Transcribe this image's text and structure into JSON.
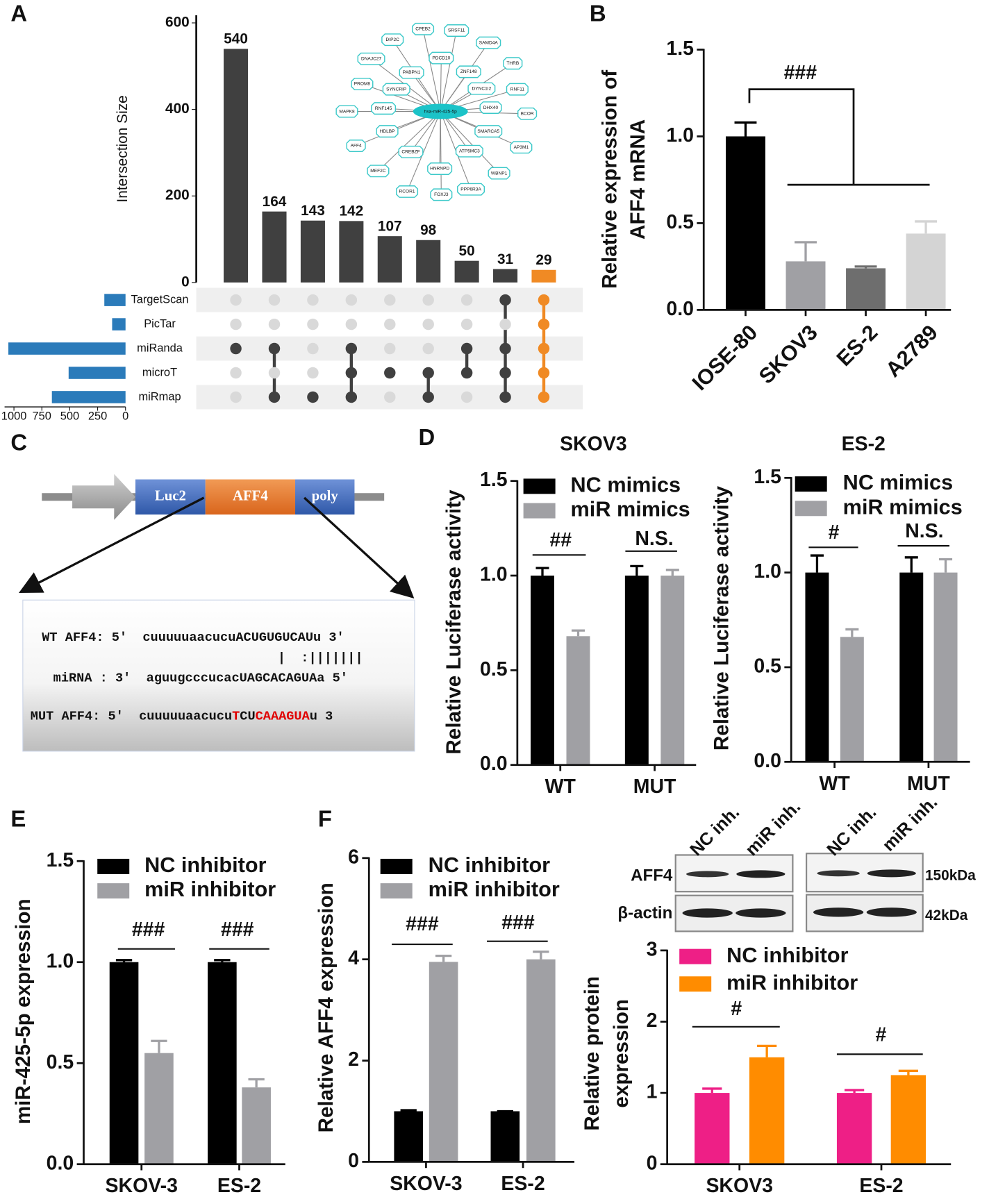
{
  "panel_labels": [
    "A",
    "B",
    "C",
    "D",
    "E",
    "F"
  ],
  "network": {
    "center": "hsa-miR-425-5p",
    "nodes": [
      "CPEB2",
      "SRSF11",
      "DIP2C",
      "SAMD4A",
      "DNAJC27",
      "PDCD10",
      "THRB",
      "PABPN1",
      "ZNF148",
      "PROM8",
      "SYNCRIP",
      "DYNC1I2",
      "RNF11",
      "MAPK8",
      "RNF145",
      "DHX40",
      "BCOR",
      "HDLBP",
      "SMARCA5",
      "AFF4",
      "CREBZF",
      "ATP5MC3",
      "AP3M1",
      "MEF2C",
      "HNRNPD",
      "WBNP1",
      "RCOR1",
      "FOXJ3",
      "PPP6R3A"
    ]
  },
  "construct": {
    "elements": [
      "Luc2",
      "AFF4",
      "poly"
    ],
    "wt": "WT AFF4: 5'  cuuuuuaacucuACUGUGUCAUu 3'",
    "pairing": "|  :|||||||",
    "mirna": "miRNA : 3'  aguugcccucacUAGCACAGUAa 5′",
    "mut": [
      "MUT AFF4: 5'  cuuuuuaacucu",
      "T",
      "CU",
      "CAAAGUA",
      "u 3"
    ]
  },
  "blot": {
    "lanes": [
      "NC inh.",
      "miR inh.",
      "NC inh.",
      "miR inh."
    ],
    "rows": [
      "AFF4",
      "β-actin"
    ],
    "sizes": [
      "150kDa",
      "42kDa"
    ]
  },
  "chart_data": [
    {
      "type": "upset",
      "ylabel": "Intersection Size",
      "values": [
        540,
        164,
        143,
        142,
        107,
        98,
        50,
        31,
        29
      ],
      "colors": [
        "#404040",
        "#404040",
        "#404040",
        "#404040",
        "#404040",
        "#404040",
        "#404040",
        "#404040",
        "#f08a24"
      ],
      "ylim": [
        0,
        600
      ],
      "yticks": [
        0,
        200,
        400,
        600
      ],
      "sets": [
        "TargetScan",
        "PicTar",
        "miRanda",
        "microT",
        "miRmap"
      ],
      "set_sizes": [
        190,
        120,
        1050,
        510,
        660
      ],
      "set_color": "#2b7bba",
      "set_xlim": [
        0,
        1050
      ],
      "set_xticks": [
        0,
        250,
        500,
        750,
        1000
      ],
      "membership": [
        [
          0,
          0,
          1,
          0,
          0
        ],
        [
          0,
          0,
          1,
          0,
          1
        ],
        [
          0,
          0,
          0,
          0,
          1
        ],
        [
          0,
          0,
          1,
          1,
          1
        ],
        [
          0,
          0,
          0,
          1,
          0
        ],
        [
          0,
          0,
          0,
          1,
          1
        ],
        [
          0,
          0,
          1,
          1,
          0
        ],
        [
          1,
          0,
          1,
          1,
          1
        ],
        [
          1,
          1,
          1,
          1,
          1
        ]
      ]
    },
    {
      "type": "bar",
      "ylabel": [
        "Relative expression of",
        "AFF4 mRNA"
      ],
      "categories": [
        "IOSE-80",
        "SKOV3",
        "ES-2",
        "A2789"
      ],
      "values": [
        1.0,
        0.28,
        0.24,
        0.44
      ],
      "errors": [
        0.08,
        0.11,
        0.01,
        0.07
      ],
      "colors": [
        "#000000",
        "#a0a0a4",
        "#6e6e6e",
        "#d4d4d4"
      ],
      "ylim": [
        0,
        1.5
      ],
      "yticks": [
        {
          "value": 0,
          "label": "0.0"
        },
        {
          "value": 0.5,
          "label": "0.5"
        },
        {
          "value": 1,
          "label": "1.0"
        },
        {
          "value": 1.5,
          "label": "1.5"
        }
      ],
      "annotations": [
        "###"
      ]
    },
    {
      "type": "bar",
      "title": "SKOV3",
      "ylabel": "Relative Luciferase activity",
      "categories": [
        "WT",
        "MUT"
      ],
      "series": [
        {
          "name": "NC mimics",
          "color": "#000000",
          "values": [
            1.0,
            1.0
          ],
          "errors": [
            0.04,
            0.05
          ]
        },
        {
          "name": "miR mimics",
          "color": "#a0a0a4",
          "values": [
            0.68,
            1.0
          ],
          "errors": [
            0.03,
            0.03
          ]
        }
      ],
      "ylim": [
        0,
        1.5
      ],
      "yticks": [
        {
          "value": 0,
          "label": "0.0"
        },
        {
          "value": 0.5,
          "label": "0.5"
        },
        {
          "value": 1,
          "label": "1.0"
        },
        {
          "value": 1.5,
          "label": "1.5"
        }
      ],
      "annotations": [
        "##",
        "N.S."
      ]
    },
    {
      "type": "bar",
      "title": "ES-2",
      "ylabel": "Relative Luciferase activity",
      "categories": [
        "WT",
        "MUT"
      ],
      "series": [
        {
          "name": "NC mimics",
          "color": "#000000",
          "values": [
            1.0,
            1.0
          ],
          "errors": [
            0.09,
            0.08
          ]
        },
        {
          "name": "miR mimics",
          "color": "#a0a0a4",
          "values": [
            0.66,
            1.0
          ],
          "errors": [
            0.04,
            0.07
          ]
        }
      ],
      "ylim": [
        0,
        1.5
      ],
      "yticks": [
        {
          "value": 0,
          "label": "0.0"
        },
        {
          "value": 0.5,
          "label": "0.5"
        },
        {
          "value": 1,
          "label": "1.0"
        },
        {
          "value": 1.5,
          "label": "1.5"
        }
      ],
      "annotations": [
        "#",
        "N.S."
      ]
    },
    {
      "type": "bar",
      "ylabel": "miR-425-5p expression",
      "categories": [
        "SKOV-3",
        "ES-2"
      ],
      "series": [
        {
          "name": "NC inhibitor",
          "color": "#000000",
          "values": [
            1.0,
            1.0
          ],
          "errors": [
            0.01,
            0.01
          ]
        },
        {
          "name": "miR inhibitor",
          "color": "#a0a0a4",
          "values": [
            0.55,
            0.38
          ],
          "errors": [
            0.06,
            0.04
          ]
        }
      ],
      "ylim": [
        0,
        1.5
      ],
      "yticks": [
        {
          "value": 0,
          "label": "0.0"
        },
        {
          "value": 0.5,
          "label": "0.5"
        },
        {
          "value": 1,
          "label": "1.0"
        },
        {
          "value": 1.5,
          "label": "1.5"
        }
      ],
      "annotations": [
        "###",
        "###"
      ]
    },
    {
      "type": "bar",
      "ylabel": "Relative AFF4 expression",
      "categories": [
        "SKOV-3",
        "ES-2"
      ],
      "series": [
        {
          "name": "NC inhibitor",
          "color": "#000000",
          "values": [
            1.0,
            1.0
          ],
          "errors": [
            0.02,
            0
          ]
        },
        {
          "name": "miR inhibitor",
          "color": "#a0a0a4",
          "values": [
            3.95,
            4.0
          ],
          "errors": [
            0.12,
            0.15
          ]
        }
      ],
      "ylim": [
        0,
        6
      ],
      "yticks": [
        0,
        2,
        4,
        6
      ],
      "annotations": [
        "###",
        "###"
      ]
    },
    {
      "type": "bar",
      "ylabel": [
        "Relative protein",
        "expression"
      ],
      "categories": [
        "SKOV3",
        "ES-2"
      ],
      "series": [
        {
          "name": "NC inhibitor",
          "color": "#ee1f86",
          "values": [
            1.0,
            1.0
          ],
          "errors": [
            0.06,
            0.04
          ]
        },
        {
          "name": "miR inhibitor",
          "color": "#ff8c00",
          "values": [
            1.5,
            1.25
          ],
          "errors": [
            0.16,
            0.06
          ]
        }
      ],
      "ylim": [
        0,
        3
      ],
      "yticks": [
        0,
        1,
        2,
        3
      ],
      "annotations": [
        "#",
        "#"
      ]
    }
  ]
}
